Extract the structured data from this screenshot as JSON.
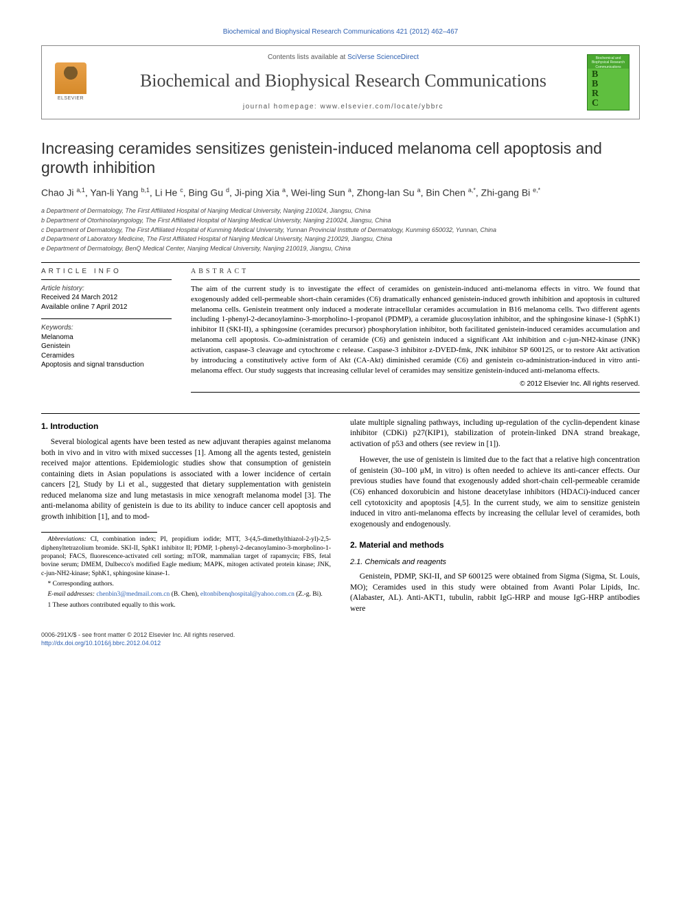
{
  "top_citation": "Biochemical and Biophysical Research Communications 421 (2012) 462–467",
  "header": {
    "contents_prefix": "Contents lists available at ",
    "contents_link": "SciVerse ScienceDirect",
    "journal_name": "Biochemical and Biophysical Research Communications",
    "homepage": "journal homepage: www.elsevier.com/locate/ybbrc",
    "elsevier_label": "ELSEVIER",
    "cover_letters": [
      "B",
      "B",
      "R",
      "C"
    ],
    "cover_top": "Biochemical and Biophysical Research Communications"
  },
  "title": "Increasing ceramides sensitizes genistein-induced melanoma cell apoptosis and growth inhibition",
  "authors_html": "Chao Ji <sup>a,1</sup>, Yan-li Yang <sup>b,1</sup>, Li He <sup>c</sup>, Bing Gu <sup>d</sup>, Ji-ping Xia <sup>a</sup>, Wei-ling Sun <sup>a</sup>, Zhong-lan Su <sup>a</sup>, Bin Chen <sup>a,*</sup>, Zhi-gang Bi <sup>e,*</sup>",
  "affiliations": [
    "a Department of Dermatology, The First Affiliated Hospital of Nanjing Medical University, Nanjing 210024, Jiangsu, China",
    "b Department of Otorhinolaryngology, The First Affiliated Hospital of Nanjing Medical University, Nanjing 210024, Jiangsu, China",
    "c Department of Dermatology, The First Affiliated Hospital of Kunming Medical University, Yunnan Provincial Institute of Dermatology, Kunming 650032, Yunnan, China",
    "d Department of Laboratory Medicine, The First Affiliated Hospital of Nanjing Medical University, Nanjing 210029, Jiangsu, China",
    "e Department of Dermatology, BenQ Medical Center, Nanjing Medical University, Nanjing 210019, Jiangsu, China"
  ],
  "article_info": {
    "heading": "ARTICLE INFO",
    "history_label": "Article history:",
    "received": "Received 24 March 2012",
    "online": "Available online 7 April 2012",
    "keywords_label": "Keywords:",
    "keywords": [
      "Melanoma",
      "Genistein",
      "Ceramides",
      "Apoptosis and signal transduction"
    ]
  },
  "abstract": {
    "heading": "ABSTRACT",
    "text": "The aim of the current study is to investigate the effect of ceramides on genistein-induced anti-melanoma effects in vitro. We found that exogenously added cell-permeable short-chain ceramides (C6) dramatically enhanced genistein-induced growth inhibition and apoptosis in cultured melanoma cells. Genistein treatment only induced a moderate intracellular ceramides accumulation in B16 melanoma cells. Two different agents including 1-phenyl-2-decanoylamino-3-morpholino-1-propanol (PDMP), a ceramide glucosylation inhibitor, and the sphingosine kinase-1 (SphK1) inhibitor II (SKI-II), a sphingosine (ceramides precursor) phosphorylation inhibitor, both facilitated genistein-induced ceramides accumulation and melanoma cell apoptosis. Co-administration of ceramide (C6) and genistein induced a significant Akt inhibition and c-jun-NH2-kinase (JNK) activation, caspase-3 cleavage and cytochrome c release. Caspase-3 inhibitor z-DVED-fmk, JNK inhibitor SP 600125, or to restore Akt activation by introducing a constitutively active form of Akt (CA-Akt) diminished ceramide (C6) and genistein co-administration-induced in vitro anti-melanoma effect. Our study suggests that increasing cellular level of ceramides may sensitize genistein-induced anti-melanoma effects.",
    "copyright": "© 2012 Elsevier Inc. All rights reserved."
  },
  "intro": {
    "heading": "1. Introduction",
    "p1": "Several biological agents have been tested as new adjuvant therapies against melanoma both in vivo and in vitro with mixed successes [1]. Among all the agents tested, genistein received major attentions. Epidemiologic studies show that consumption of genistein containing diets in Asian populations is associated with a lower incidence of certain cancers [2], Study by Li et al., suggested that dietary supplementation with genistein reduced melanoma size and lung metastasis in mice xenograft melanoma model [3]. The anti-melanoma ability of genistein is due to its ability to induce cancer cell apoptosis and growth inhibition [1], and to mod-",
    "p2": "ulate multiple signaling pathways, including up-regulation of the cyclin-dependent kinase inhibitor (CDKi) p27(KIP1), stabilization of protein-linked DNA strand breakage, activation of p53 and others (see review in [1]).",
    "p3": "However, the use of genistein is limited due to the fact that a relative high concentration of genistein (30–100 μM, in vitro) is often needed to achieve its anti-cancer effects. Our previous studies have found that exogenously added short-chain cell-permeable ceramide (C6) enhanced doxorubicin and histone deacetylase inhibitors (HDACi)-induced cancer cell cytotoxicity and apoptosis [4,5]. In the current study, we aim to sensitize genistein induced in vitro anti-melanoma effects by increasing the cellular level of ceramides, both exogenously and endogenously."
  },
  "methods": {
    "heading": "2. Material and methods",
    "sub1": "2.1. Chemicals and reagents",
    "p1": "Genistein, PDMP, SKI-II, and SP 600125 were obtained from Sigma (Sigma, St. Louis, MO); Ceramides used in this study were obtained from Avanti Polar Lipids, Inc. (Alabaster, AL). Anti-AKT1, tubulin, rabbit IgG-HRP and mouse IgG-HRP antibodies were"
  },
  "footnotes": {
    "abbrev_label": "Abbreviations:",
    "abbrev": " CI, combination index; PI, propidium iodide; MTT, 3-(4,5-dimethylthiazol-2-yl)-2,5-diphenyltetrazolium bromide. SKI-II, SphK1 inhibitor II; PDMP, 1-phenyl-2-decanoylamino-3-morpholino-1-propanol; FACS, fluorescence-activated cell sorting; mTOR, mammalian target of rapamycin; FBS, fetal bovine serum; DMEM, Dulbecco's modified Eagle medium; MAPK, mitogen activated protein kinase; JNK, c-jun-NH2-kinase; SphK1, sphingosine kinase-1.",
    "corr": "* Corresponding authors.",
    "email_label": "E-mail addresses: ",
    "email1": "chenbin3@medmail.com.cn",
    "email1_aff": " (B. Chen), ",
    "email2": "eltonbibenqhospital@yahoo.com.cn",
    "email2_aff": " (Z.-g. Bi).",
    "contrib": "1 These authors contributed equally to this work."
  },
  "bottom": {
    "issn": "0006-291X/$ - see front matter © 2012 Elsevier Inc. All rights reserved.",
    "doi": "http://dx.doi.org/10.1016/j.bbrc.2012.04.012"
  }
}
